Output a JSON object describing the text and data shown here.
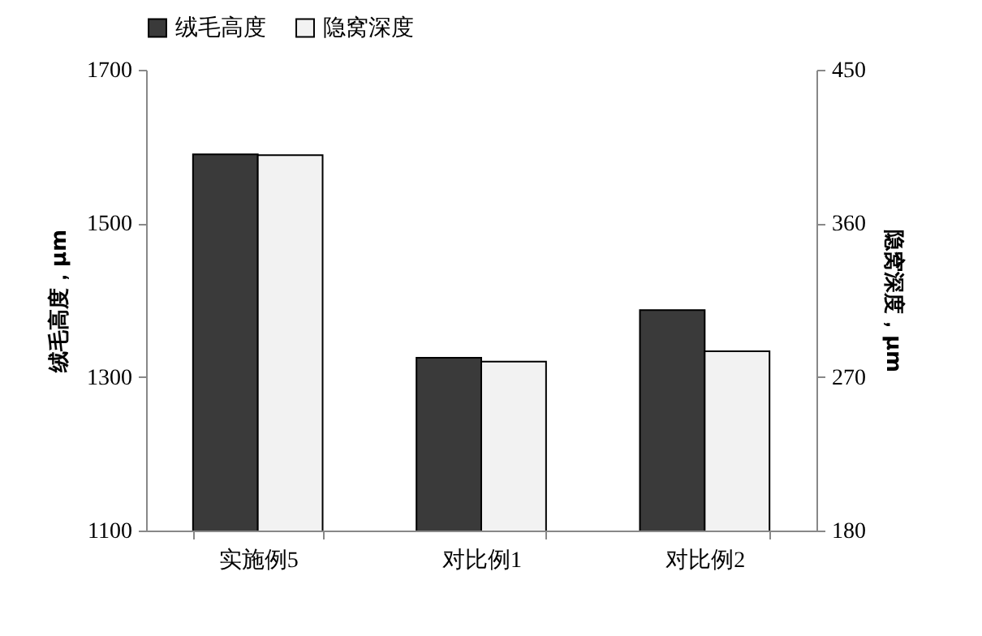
{
  "chart_data": {
    "type": "bar",
    "categories": [
      "实施例5",
      "对比例1",
      "对比例2"
    ],
    "series": [
      {
        "name": "绒毛高度",
        "color": "#3a3a3a",
        "values": [
          1590,
          1325,
          1387
        ]
      },
      {
        "name": "隐窝深度",
        "color": "#f2f2f2",
        "values": [
          400,
          279,
          285
        ],
        "axis": "y2"
      }
    ],
    "ylabel": "绒毛高度，μm",
    "y2label": "隐窝深度，μm",
    "ylim": [
      1100,
      1700
    ],
    "yticks": [
      1100,
      1300,
      1500,
      1700
    ],
    "y2lim": [
      180,
      450
    ],
    "y2ticks": [
      180,
      270,
      360,
      450
    ],
    "legend": "top",
    "grid": false
  }
}
